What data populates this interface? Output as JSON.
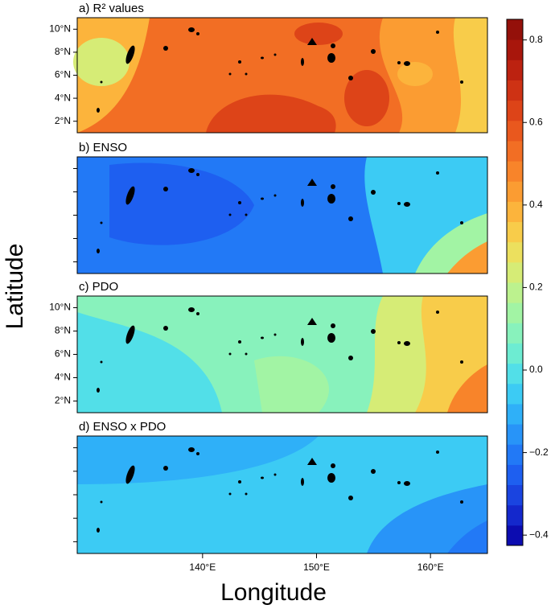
{
  "chart_data": {
    "type": "map",
    "xlabel": "Longitude",
    "ylabel": "Latitude",
    "xlim": [
      129,
      165
    ],
    "xticks": [
      {
        "value": 140,
        "label": "140°E"
      },
      {
        "value": 150,
        "label": "150°E"
      },
      {
        "value": 160,
        "label": "160°E"
      }
    ],
    "ylim": [
      1,
      11
    ],
    "panels": [
      {
        "title": "a) R² values",
        "yticks": [
          {
            "value": 2,
            "label": "2°N"
          },
          {
            "value": 4,
            "label": "4°N"
          },
          {
            "value": 6,
            "label": "6°N"
          },
          {
            "value": 8,
            "label": "8°N"
          },
          {
            "value": 10,
            "label": "10°N"
          }
        ]
      },
      {
        "title": "b) ENSO",
        "yticks": [
          2,
          4,
          6,
          8,
          10
        ]
      },
      {
        "title": "c) PDO",
        "yticks": [
          {
            "value": 2,
            "label": "2°N"
          },
          {
            "value": 4,
            "label": "4°N"
          },
          {
            "value": 6,
            "label": "6°N"
          },
          {
            "value": 8,
            "label": "8°N"
          },
          {
            "value": 10,
            "label": "10°N"
          }
        ]
      },
      {
        "title": "d) ENSO x PDO",
        "yticks": [
          2,
          4,
          6,
          8,
          10
        ]
      }
    ],
    "colorbar": {
      "lim": [
        -0.425,
        0.85
      ],
      "ticks": [
        {
          "value": -0.4,
          "label": "−0.4"
        },
        {
          "value": -0.2,
          "label": "−0.2"
        },
        {
          "value": 0,
          "label": "0.0"
        },
        0.2,
        0.4,
        0.6,
        0.8
      ],
      "colors": [
        "#0c0cb0",
        "#1428cc",
        "#1a44e0",
        "#1e5ff0",
        "#2279f6",
        "#2894f8",
        "#2fb0f8",
        "#3ccbf4",
        "#52dfe8",
        "#6decd2",
        "#88f2bc",
        "#a2f4a4",
        "#bcf28e",
        "#d6ec76",
        "#ece05e",
        "#f8cc4a",
        "#fcb43c",
        "#fb9c32",
        "#f8842a",
        "#f26e24",
        "#e9581e",
        "#dd4418",
        "#ce3214",
        "#bc2210",
        "#a8160c",
        "#94100a"
      ]
    }
  }
}
